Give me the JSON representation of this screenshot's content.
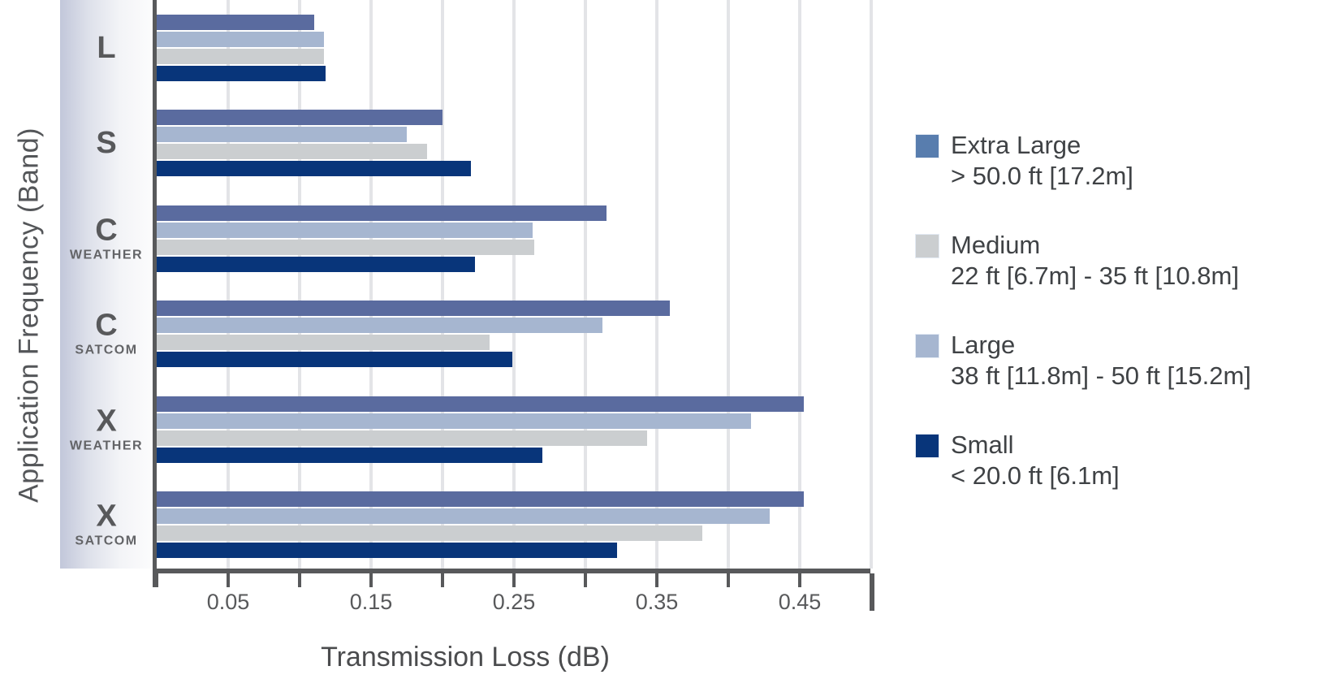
{
  "chart_data": {
    "type": "bar",
    "orientation": "horizontal",
    "xlabel": "Transmission Loss (dB)",
    "ylabel": "Application Frequency (Band)",
    "xlim": [
      0,
      0.5
    ],
    "tick_step": 0.05,
    "grid": true,
    "legend_position": "right",
    "xtick_labels": [
      {
        "label": "0.05",
        "value": 0.05
      },
      {
        "label": "0.15",
        "value": 0.15
      },
      {
        "label": "0.25",
        "value": 0.25
      },
      {
        "label": "0.35",
        "value": 0.35
      },
      {
        "label": "0.45",
        "value": 0.45
      }
    ],
    "categories": [
      {
        "key": "l",
        "label": "L",
        "sublabel": ""
      },
      {
        "key": "s",
        "label": "S",
        "sublabel": ""
      },
      {
        "key": "c-weather",
        "label": "C",
        "sublabel": "WEATHER"
      },
      {
        "key": "c-satcom",
        "label": "C",
        "sublabel": "SATCOM"
      },
      {
        "key": "x-weather",
        "label": "X",
        "sublabel": "WEATHER"
      },
      {
        "key": "x-satcom",
        "label": "X",
        "sublabel": "SATCOM"
      }
    ],
    "series": [
      {
        "name": "Extra Large",
        "range": "> 50.0 ft [17.2m]",
        "color": "#5a6b9f",
        "legend_color": "#587dae",
        "values": [
          0.11,
          0.2,
          0.315,
          0.359,
          0.453,
          0.453
        ]
      },
      {
        "name": "Large",
        "range": "38 ft [11.8m] - 50 ft [15.2m]",
        "color": "#a6b6d0",
        "legend_color": "#a6b6d0",
        "values": [
          0.117,
          0.175,
          0.263,
          0.312,
          0.416,
          0.429
        ]
      },
      {
        "name": "Medium",
        "range": "22 ft [6.7m] - 35 ft [10.8m]",
        "color": "#cbced0",
        "legend_color": "#cbced0",
        "values": [
          0.117,
          0.189,
          0.264,
          0.233,
          0.343,
          0.382
        ]
      },
      {
        "name": "Small",
        "range": "< 20.0 ft [6.1m]",
        "color": "#08357a",
        "legend_color": "#08357a",
        "values": [
          0.118,
          0.22,
          0.223,
          0.249,
          0.27,
          0.322
        ]
      }
    ],
    "legend_order": [
      "Extra Large",
      "Medium",
      "Large",
      "Small"
    ],
    "colors": {
      "axis": "#58595b",
      "gridline": "#e3e4e7",
      "tick_label": "#58595b",
      "title_text": "#4b4c4e",
      "legend_text": "#3f4245"
    }
  }
}
